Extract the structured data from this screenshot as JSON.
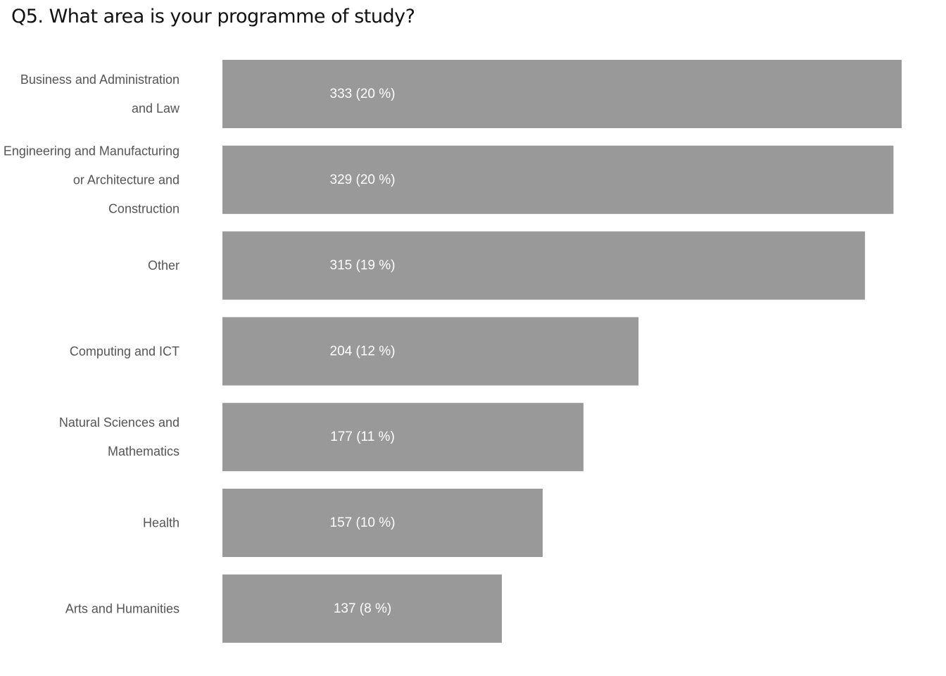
{
  "title": "Q5. What area is your programme of study?",
  "bar_color": "#999999",
  "label_color": "#555555",
  "value_label_color": "#ffffff",
  "chart_data": {
    "type": "bar",
    "orientation": "horizontal",
    "title": "Q5. What area is your programme of study?",
    "categories": [
      "Business and Administration and Law",
      "Engineering and Manufacturing or Architecture and Construction",
      "Other",
      "Computing and ICT",
      "Natural Sciences and Mathematics",
      "Health",
      "Arts and Humanities"
    ],
    "category_lines": [
      [
        "Business and Administration",
        "and Law"
      ],
      [
        "Engineering and Manufacturing",
        "or Architecture and",
        "Construction"
      ],
      [
        "Other"
      ],
      [
        "Computing and ICT"
      ],
      [
        "Natural Sciences and",
        "Mathematics"
      ],
      [
        "Health"
      ],
      [
        "Arts and Humanities"
      ]
    ],
    "values": [
      333,
      329,
      315,
      204,
      177,
      157,
      137
    ],
    "data_labels": [
      "333  (20 %)",
      "329  (20 %)",
      "315  (19 %)",
      "204  (12 %)",
      "177  (11 %)",
      "157  (10 %)",
      "137  (8 %)"
    ],
    "xlim": [
      0,
      333
    ],
    "grid": false,
    "legend": "none"
  }
}
